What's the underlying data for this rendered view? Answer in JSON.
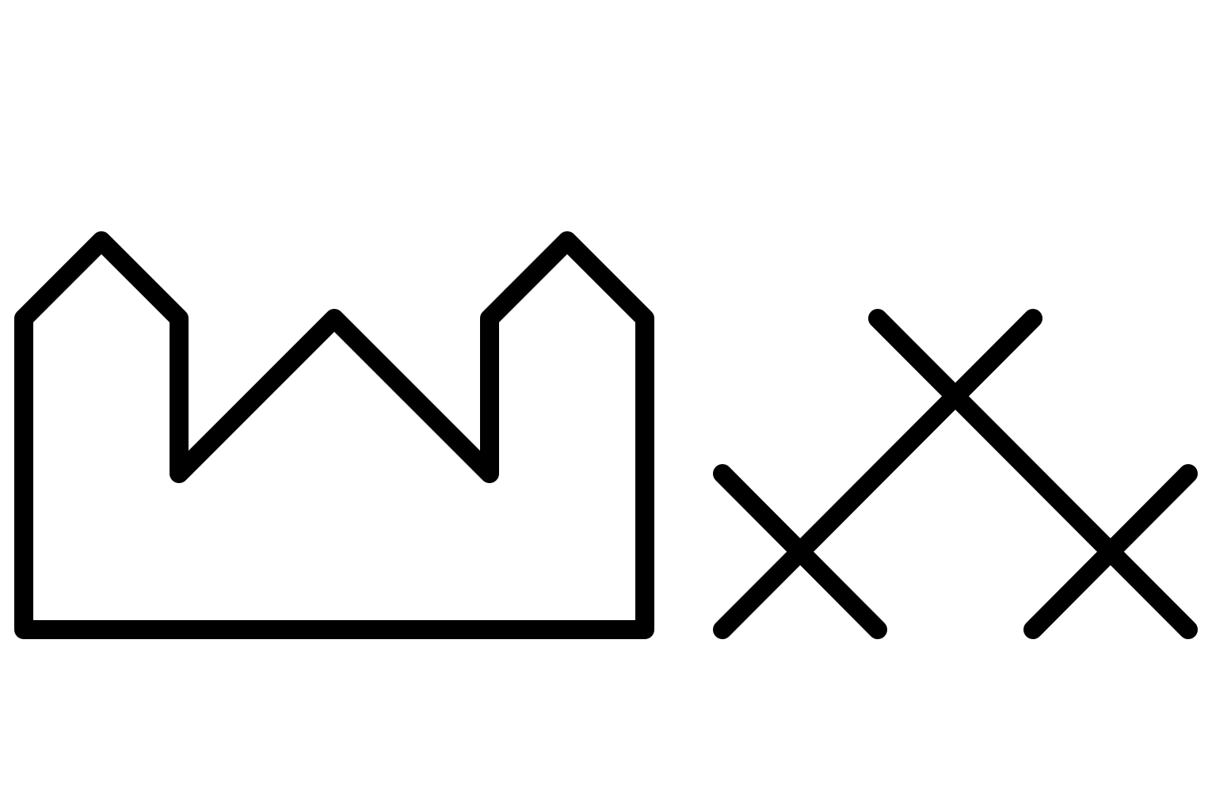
{
  "symbols": [
    {
      "name": "factory-outline",
      "description_name": "factory"
    },
    {
      "name": "cross-lattice",
      "description_name": "crosses"
    }
  ],
  "colors": {
    "background": "#ffffff",
    "stroke": "#000000"
  }
}
